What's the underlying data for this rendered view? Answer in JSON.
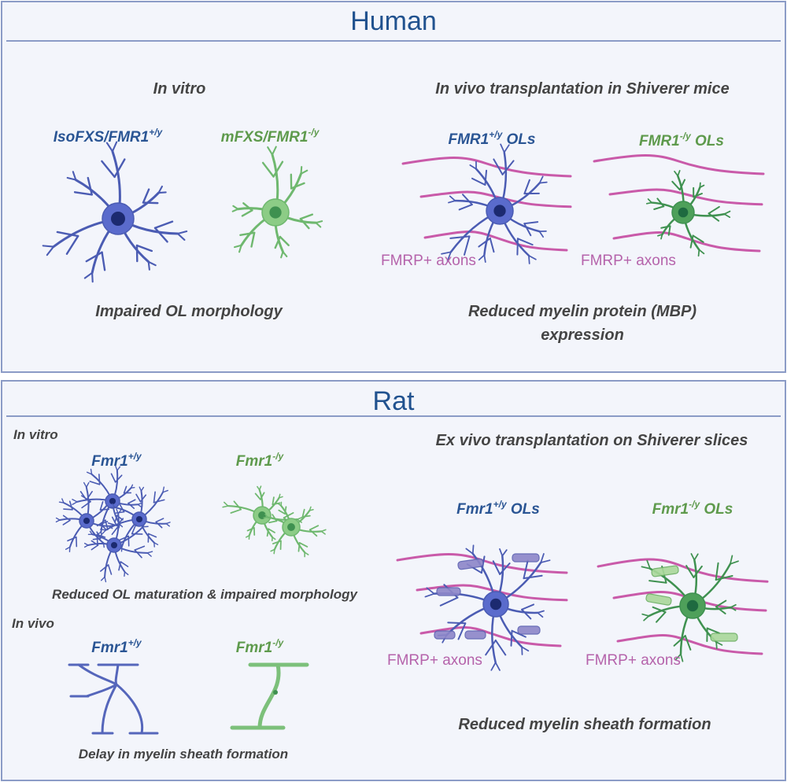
{
  "colors": {
    "background": "#f3f5fb",
    "border": "#8b9bc6",
    "title": "#21528f",
    "wildtype_cell": "#4b5cb3",
    "knockout_cell": "#6fb86f",
    "knockout_cell_dark": "#3f9150",
    "axon": "#c95aa9",
    "label_blue": "#2a5594",
    "label_green": "#5e9a4c"
  },
  "human": {
    "title": "Human",
    "in_vitro": {
      "heading": "In vitro",
      "control": {
        "base": "IsoFXS/FMR1",
        "sup": "+/y"
      },
      "mutant": {
        "base": "mFXS/FMR1",
        "sup": "-/y"
      },
      "result": "Impaired OL morphology"
    },
    "in_vivo": {
      "heading": "In vivo transplantation in Shiverer mice",
      "control": {
        "base": "FMR1",
        "sup": "+/y",
        "suffix": " OLs"
      },
      "mutant": {
        "base": "FMR1",
        "sup": "-/y",
        "suffix": " OLs"
      },
      "axon_label": "FMRP+ axons",
      "result_line1": "Reduced myelin protein (MBP)",
      "result_line2": "expression"
    }
  },
  "rat": {
    "title": "Rat",
    "in_vitro": {
      "heading": "In vitro",
      "control": {
        "base": "Fmr1",
        "sup": "+/y"
      },
      "mutant": {
        "base": "Fmr1",
        "sup": "-/y"
      },
      "result": "Reduced OL maturation & impaired morphology"
    },
    "in_vivo": {
      "heading": "In vivo",
      "control": {
        "base": "Fmr1",
        "sup": "+/y"
      },
      "mutant": {
        "base": "Fmr1",
        "sup": "-/y"
      },
      "result": "Delay in myelin sheath formation"
    },
    "ex_vivo": {
      "heading": "Ex vivo transplantation on Shiverer slices",
      "control": {
        "base": "Fmr1",
        "sup": "+/y",
        "suffix": " OLs"
      },
      "mutant": {
        "base": "Fmr1",
        "sup": "-/y",
        "suffix": " OLs"
      },
      "axon_label": "FMRP+ axons",
      "result": "Reduced myelin sheath formation"
    }
  }
}
